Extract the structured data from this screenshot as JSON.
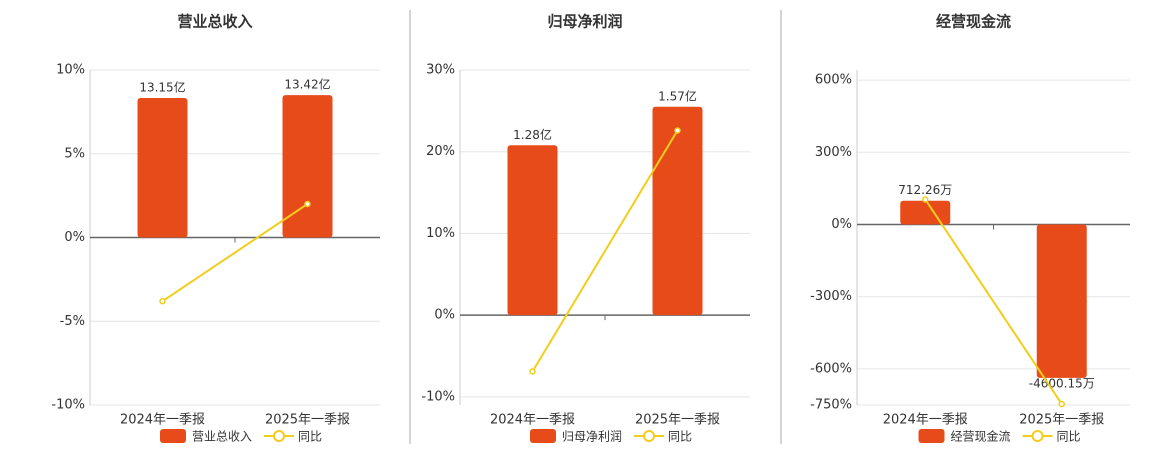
{
  "chart_data": [
    {
      "type": "bar",
      "title": "营业总收入",
      "categories": [
        "2024年一季报",
        "2025年一季报"
      ],
      "series": [
        {
          "name": "营业总收入",
          "type": "bar",
          "color": "#e84b1a",
          "values": [
            13.15,
            13.42
          ],
          "value_labels": [
            "13.15亿",
            "13.42亿"
          ]
        },
        {
          "name": "同比",
          "type": "line",
          "color": "#f2cd1b",
          "values": [
            -3.8,
            2.0
          ]
        }
      ],
      "ylim": [
        -10,
        10
      ],
      "yticks": [
        {
          "value": -10,
          "label": "-10%"
        },
        {
          "value": -5,
          "label": "-5%"
        },
        {
          "value": 0,
          "label": "0%"
        },
        {
          "value": 5,
          "label": "5%"
        },
        {
          "value": 10,
          "label": "10%"
        }
      ],
      "grid": true
    },
    {
      "type": "bar",
      "title": "归母净利润",
      "categories": [
        "2024年一季报",
        "2025年一季报"
      ],
      "series": [
        {
          "name": "归母净利润",
          "type": "bar",
          "color": "#e84b1a",
          "values": [
            1.28,
            1.57
          ],
          "value_labels": [
            "1.28亿",
            "1.57亿"
          ]
        },
        {
          "name": "同比",
          "type": "line",
          "color": "#f2cd1b",
          "values": [
            -6.9,
            22.6
          ]
        }
      ],
      "ylim": [
        -11,
        30
      ],
      "yticks": [
        {
          "value": -10,
          "label": "-10%"
        },
        {
          "value": 0,
          "label": "0%"
        },
        {
          "value": 10,
          "label": "10%"
        },
        {
          "value": 20,
          "label": "20%"
        },
        {
          "value": 30,
          "label": "30%"
        }
      ],
      "grid": true
    },
    {
      "type": "bar",
      "title": "经营现金流",
      "categories": [
        "2024年一季报",
        "2025年一季报"
      ],
      "series": [
        {
          "name": "经营现金流",
          "type": "bar",
          "color": "#e84b1a",
          "values": [
            712.26,
            -4600.15
          ],
          "value_labels": [
            "712.26万",
            "-4600.15万"
          ]
        },
        {
          "name": "同比",
          "type": "line",
          "color": "#f2cd1b",
          "values": [
            104,
            -746
          ]
        }
      ],
      "ylim": [
        -750,
        642
      ],
      "yticks": [
        {
          "value": -750,
          "label": "-750%"
        },
        {
          "value": -600,
          "label": "-600%"
        },
        {
          "value": -300,
          "label": "-300%"
        },
        {
          "value": 0,
          "label": "0%"
        },
        {
          "value": 300,
          "label": "300%"
        },
        {
          "value": 600,
          "label": "600%"
        }
      ],
      "grid": true
    }
  ]
}
